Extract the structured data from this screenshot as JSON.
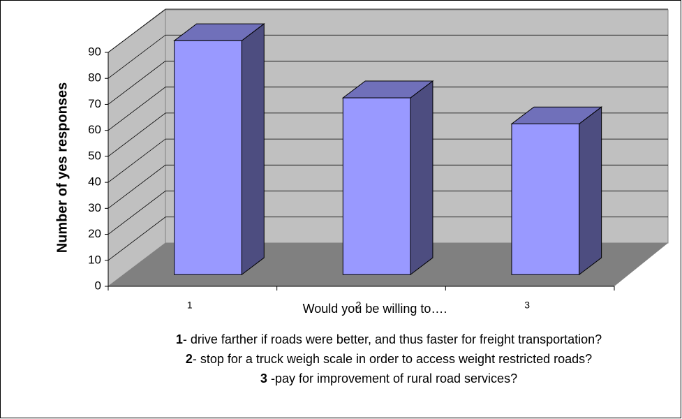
{
  "chart_data": {
    "type": "bar3d",
    "y_label": "Number of yes responses",
    "x_label": "Would you be willing to….",
    "categories": [
      "1",
      "2",
      "3"
    ],
    "values": [
      90,
      68,
      58
    ],
    "color": "#9999ff",
    "ylim": [
      0,
      90
    ],
    "yticks": [
      0,
      10,
      20,
      30,
      40,
      50,
      60,
      70,
      80,
      90
    ],
    "grid": true,
    "notes": [
      {
        "number": "1",
        "text": "- drive farther if roads were better, and thus faster for freight transportation?"
      },
      {
        "number": "2",
        "text": "- stop for a truck weigh scale in order to access weight restricted roads?"
      },
      {
        "number": "3",
        "text": " -pay for improvement of rural road services?"
      }
    ]
  }
}
